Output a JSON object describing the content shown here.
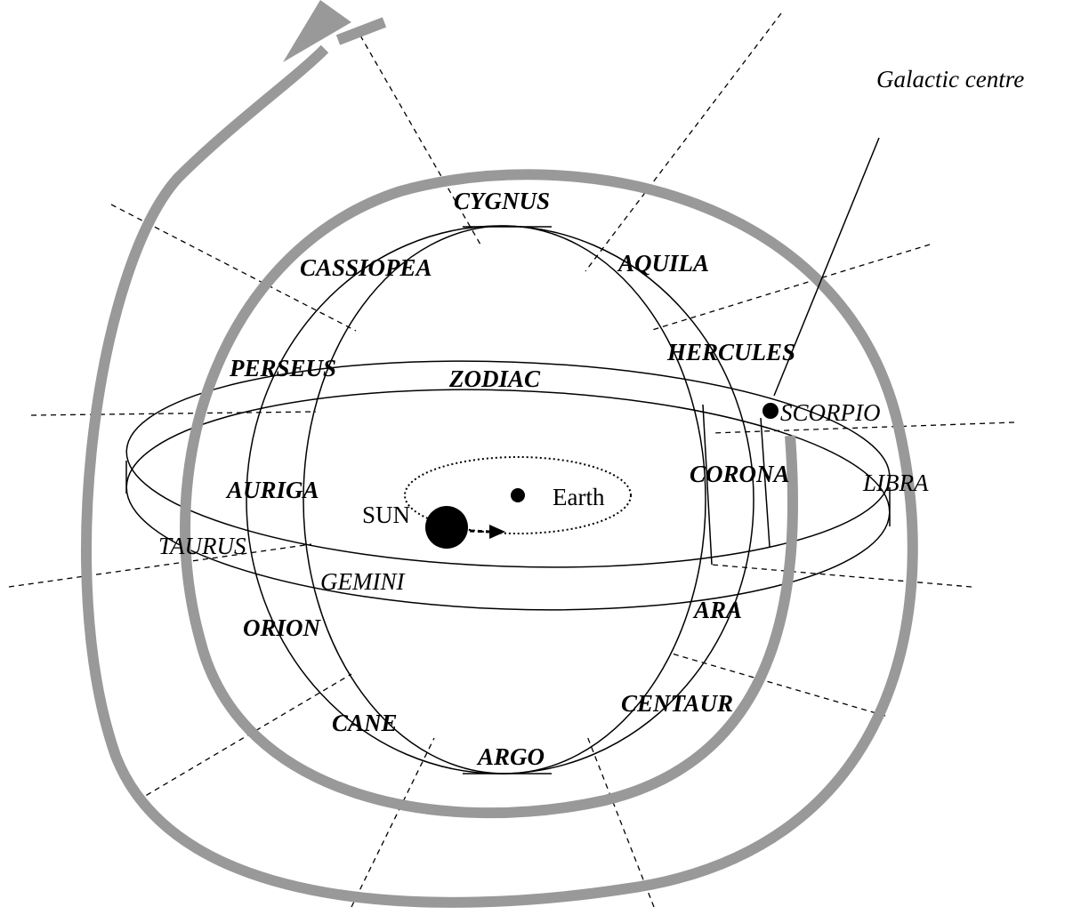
{
  "galactic_centre": "Galactic centre",
  "sun": "SUN",
  "earth": "Earth",
  "galactic_belt": [
    "CYGNUS",
    "CASSIOPEA",
    "AQUILA",
    "HERCULES",
    "PERSEUS",
    "AURIGA",
    "CORONA",
    "ORION",
    "ARA",
    "CANE",
    "CENTAUR",
    "ARGO"
  ],
  "zodiac": {
    "title": "ZODIAC",
    "constellations": [
      "SCORPIO",
      "LIBRA",
      "TAURUS",
      "GEMINI"
    ]
  }
}
